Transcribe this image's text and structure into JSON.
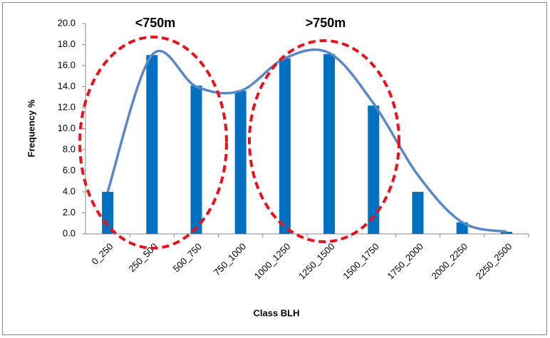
{
  "chart_data": {
    "type": "bar",
    "x_label": "Class BLH",
    "y_label": "Frequency %",
    "annotations": [
      "<750m",
      ">750m"
    ],
    "categories": [
      "0_250",
      "250_500",
      "500_750",
      "750_1000",
      "1000_1250",
      "1250_1500",
      "1500_1750",
      "1750_2000",
      "2000_2250",
      "2250_2500"
    ],
    "series": [
      {
        "type": "bar",
        "color": "#0070c0",
        "values": [
          4.0,
          17.0,
          14.1,
          13.6,
          16.7,
          17.1,
          12.2,
          4.0,
          1.1,
          0.2
        ]
      },
      {
        "type": "line",
        "color": "#5a88c6",
        "values": [
          4.0,
          17.0,
          14.0,
          13.6,
          16.7,
          17.2,
          12.4,
          5.6,
          1.1,
          0.2
        ]
      }
    ],
    "ylim": [
      0,
      20
    ],
    "yticks": [
      {
        "value": 0,
        "label": "0.0"
      },
      {
        "value": 2,
        "label": "2.0"
      },
      {
        "value": 4,
        "label": "4.0"
      },
      {
        "value": 6,
        "label": "6.0"
      },
      {
        "value": 8,
        "label": "8.0"
      },
      {
        "value": 10,
        "label": "10.0"
      },
      {
        "value": 12,
        "label": "12.0"
      },
      {
        "value": 14,
        "label": "14.0"
      },
      {
        "value": 16,
        "label": "16.0"
      },
      {
        "value": 18,
        "label": "18.0"
      },
      {
        "value": 20,
        "label": "20.0"
      }
    ],
    "grid": false
  }
}
